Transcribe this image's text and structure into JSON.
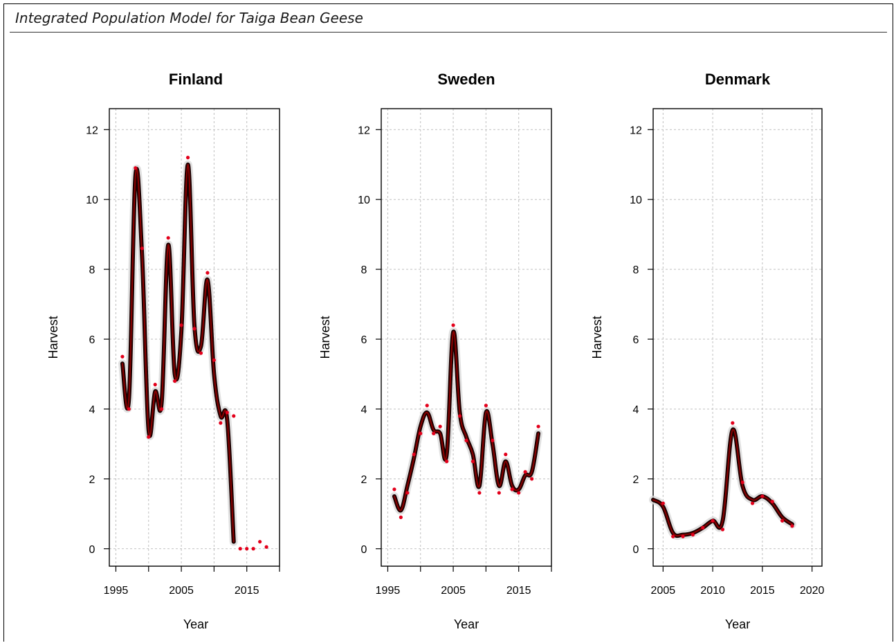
{
  "page_title": "Integrated Population Model for Taiga Bean Geese",
  "colors": {
    "observed": "#e3001b",
    "fitted": "#1c0000",
    "fitted_core": "#8b0000",
    "band": "#d9d9d9",
    "grid": "#bfbfbf"
  },
  "chart_data": [
    {
      "type": "line",
      "title": "Finland",
      "xlabel": "Year",
      "ylabel": "Harvest",
      "xlim": [
        1994,
        2020
      ],
      "ylim": [
        -0.5,
        12.6
      ],
      "xticks": [
        1995,
        2000,
        2005,
        2010,
        2015,
        2020
      ],
      "xtick_labels": [
        "1995",
        "",
        "2005",
        "",
        "2015",
        ""
      ],
      "yticks": [
        0,
        2,
        4,
        6,
        8,
        10,
        12
      ],
      "grid": true,
      "observed": {
        "x": [
          1996,
          1997,
          1998,
          1999,
          2000,
          2001,
          2002,
          2003,
          2004,
          2005,
          2006,
          2007,
          2008,
          2009,
          2010,
          2011,
          2012,
          2013,
          2014,
          2015,
          2016,
          2017,
          2018
        ],
        "y": [
          5.5,
          4.0,
          10.9,
          8.6,
          3.2,
          4.7,
          4.0,
          8.9,
          4.8,
          6.4,
          11.2,
          6.3,
          5.6,
          7.9,
          5.4,
          3.6,
          3.9,
          3.8,
          0.0,
          0.0,
          0.0,
          0.2,
          0.05
        ]
      },
      "fitted": {
        "x": [
          1996,
          1997,
          1998,
          1999,
          2000,
          2001,
          2002,
          2003,
          2004,
          2005,
          2006,
          2007,
          2008,
          2009,
          2010,
          2011,
          2012,
          2013
        ],
        "y": [
          5.3,
          4.3,
          10.7,
          8.4,
          3.4,
          4.5,
          4.2,
          8.7,
          5.0,
          6.2,
          11.0,
          6.4,
          5.8,
          7.7,
          5.0,
          3.8,
          3.7,
          0.2
        ]
      }
    },
    {
      "type": "line",
      "title": "Sweden",
      "xlabel": "Year",
      "ylabel": "Harvest",
      "xlim": [
        1994,
        2020
      ],
      "ylim": [
        -0.5,
        12.6
      ],
      "xticks": [
        1995,
        2000,
        2005,
        2010,
        2015,
        2020
      ],
      "xtick_labels": [
        "1995",
        "",
        "2005",
        "",
        "2015",
        ""
      ],
      "yticks": [
        0,
        2,
        4,
        6,
        8,
        10,
        12
      ],
      "grid": true,
      "observed": {
        "x": [
          1996,
          1997,
          1998,
          1999,
          2000,
          2001,
          2002,
          2003,
          2004,
          2005,
          2006,
          2007,
          2008,
          2009,
          2010,
          2011,
          2012,
          2013,
          2014,
          2015,
          2016,
          2017,
          2018
        ],
        "y": [
          1.7,
          0.9,
          1.6,
          2.7,
          3.3,
          4.1,
          3.3,
          3.5,
          2.5,
          6.4,
          3.8,
          3.1,
          2.5,
          1.6,
          4.1,
          3.1,
          1.6,
          2.7,
          1.7,
          1.6,
          2.2,
          2.0,
          3.5
        ]
      },
      "fitted": {
        "x": [
          1996,
          1997,
          1998,
          1999,
          2000,
          2001,
          2002,
          2003,
          2004,
          2005,
          2006,
          2007,
          2008,
          2009,
          2010,
          2011,
          2012,
          2013,
          2014,
          2015,
          2016,
          2017,
          2018
        ],
        "y": [
          1.5,
          1.1,
          1.8,
          2.6,
          3.5,
          3.9,
          3.4,
          3.3,
          2.7,
          6.2,
          3.9,
          3.2,
          2.7,
          1.8,
          3.9,
          3.0,
          1.8,
          2.5,
          1.8,
          1.7,
          2.1,
          2.2,
          3.3
        ]
      }
    },
    {
      "type": "line",
      "title": "Denmark",
      "xlabel": "Year",
      "ylabel": "Harvest",
      "xlim": [
        2004,
        2021
      ],
      "ylim": [
        -0.5,
        12.6
      ],
      "xticks": [
        2005,
        2010,
        2015,
        2020
      ],
      "xtick_labels": [
        "2005",
        "2010",
        "2015",
        "2020"
      ],
      "yticks": [
        0,
        2,
        4,
        6,
        8,
        10,
        12
      ],
      "grid": true,
      "observed": {
        "x": [
          2005,
          2006,
          2007,
          2008,
          2009,
          2010,
          2011,
          2012,
          2013,
          2014,
          2015,
          2016,
          2017,
          2018
        ],
        "y": [
          1.3,
          0.35,
          0.35,
          0.4,
          0.6,
          0.8,
          0.55,
          3.6,
          1.9,
          1.3,
          1.5,
          1.35,
          0.8,
          0.65
        ]
      },
      "fitted": {
        "x": [
          2004,
          2005,
          2006,
          2007,
          2008,
          2009,
          2010,
          2011,
          2012,
          2013,
          2014,
          2015,
          2016,
          2017,
          2018
        ],
        "y": [
          1.4,
          1.2,
          0.45,
          0.4,
          0.45,
          0.6,
          0.8,
          0.8,
          3.4,
          1.8,
          1.4,
          1.5,
          1.3,
          0.9,
          0.7
        ]
      }
    }
  ]
}
